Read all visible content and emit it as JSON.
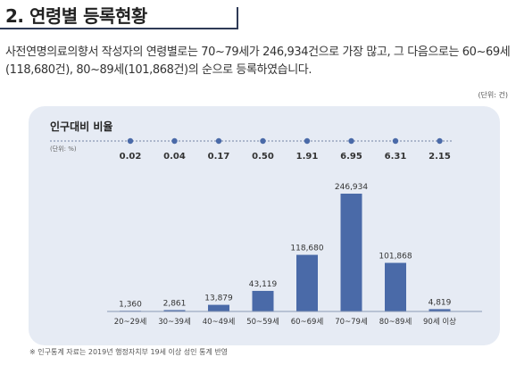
{
  "header": {
    "title": "2. 연령별 등록현황",
    "description": "사전연명의료의향서 작성자의 연령별로는 70~79세가 246,934건으로 가장 많고, 그 다음으로는 60~69세(118,680건), 80~89세(101,868건)의 순으로 등록하였습니다."
  },
  "unit_note": "(단위: 건)",
  "footnote": "※ 인구통계 자료는 2019년 행정자치부 19세 이상 성인 통계 반영",
  "colors": {
    "bar": "#4a6aa8",
    "dot": "#4a6aa8",
    "panel_bg": "#e6ebf4",
    "accent": "#2e3a56"
  },
  "chart_data": [
    {
      "type": "line",
      "title": "인구대비 비율",
      "unit": "(단위: %)",
      "categories": [
        "20~29세",
        "30~39세",
        "40~49세",
        "50~59세",
        "60~69세",
        "70~79세",
        "80~89세",
        "90세 이상"
      ],
      "value_labels": [
        "0.02",
        "0.04",
        "0.17",
        "0.50",
        "1.91",
        "6.95",
        "6.31",
        "2.15"
      ],
      "values": [
        0.02,
        0.04,
        0.17,
        0.5,
        1.91,
        6.95,
        6.31,
        2.15
      ]
    },
    {
      "type": "bar",
      "categories": [
        "20~29세",
        "30~39세",
        "40~49세",
        "50~59세",
        "60~69세",
        "70~79세",
        "80~89세",
        "90세 이상"
      ],
      "value_labels": [
        "1,360",
        "2,861",
        "13,879",
        "43,119",
        "118,680",
        "246,934",
        "101,868",
        "4,819"
      ],
      "values": [
        1360,
        2861,
        13879,
        43119,
        118680,
        246934,
        101868,
        4819
      ],
      "ylim": [
        0,
        246934
      ]
    }
  ]
}
